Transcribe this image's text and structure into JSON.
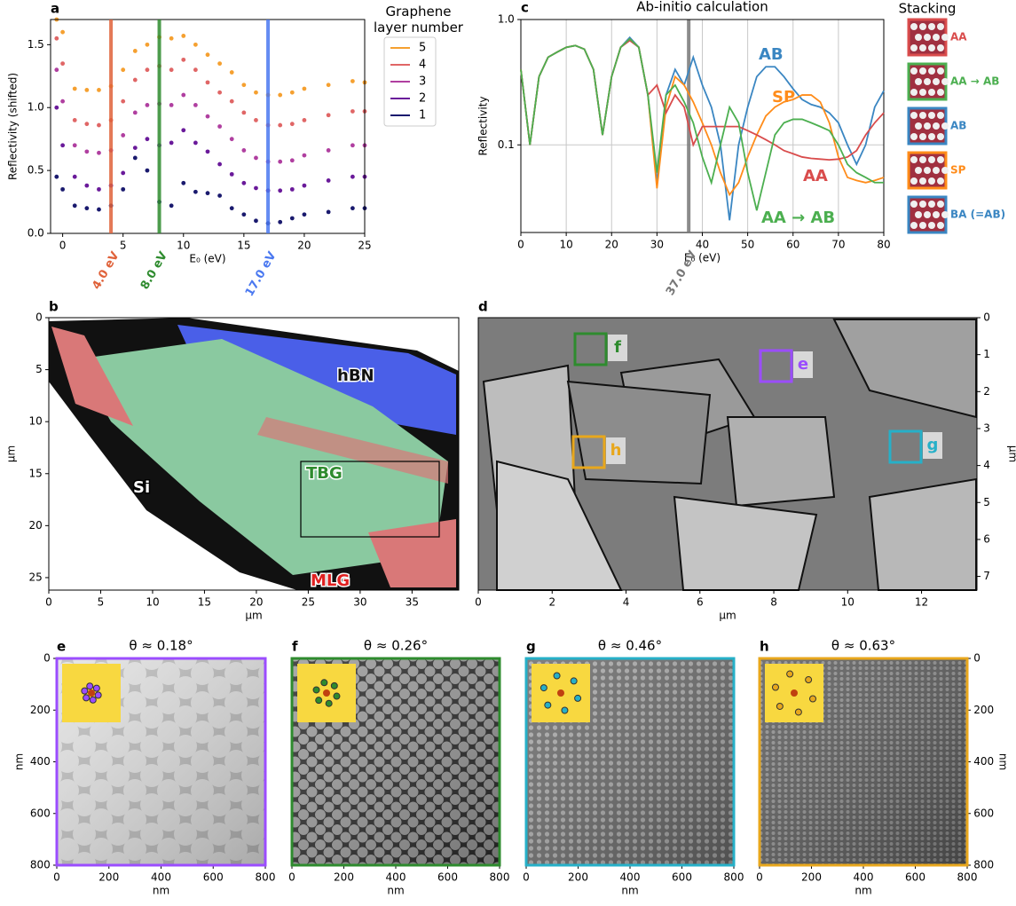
{
  "chart_data": [
    {
      "type": "scatter",
      "label": "a",
      "xlabel": "E₀ (eV)",
      "ylabel": "Reflectivity (shifted)",
      "x": [
        -0.5,
        0,
        1,
        2,
        3,
        4,
        5,
        6,
        7,
        8,
        9,
        10,
        11,
        12,
        13,
        14,
        15,
        16,
        17,
        18,
        19,
        20,
        22,
        24,
        25
      ],
      "series": [
        {
          "name": "5",
          "color": "#f5a030",
          "values": [
            1.7,
            1.6,
            1.15,
            1.14,
            1.14,
            1.17,
            1.3,
            1.45,
            1.5,
            1.56,
            1.55,
            1.57,
            1.5,
            1.42,
            1.35,
            1.28,
            1.18,
            1.12,
            1.1,
            1.1,
            1.12,
            1.15,
            1.18,
            1.21,
            1.2
          ]
        },
        {
          "name": "4",
          "color": "#e06666",
          "values": [
            1.55,
            1.35,
            0.9,
            0.87,
            0.86,
            0.9,
            1.05,
            1.22,
            1.3,
            1.33,
            1.3,
            1.38,
            1.3,
            1.2,
            1.12,
            1.05,
            0.96,
            0.9,
            0.86,
            0.86,
            0.87,
            0.9,
            0.94,
            0.97,
            0.97
          ]
        },
        {
          "name": "3",
          "color": "#b03fa0",
          "values": [
            1.3,
            1.05,
            0.7,
            0.65,
            0.64,
            0.66,
            0.78,
            0.96,
            1.02,
            1.03,
            1.02,
            1.1,
            1.02,
            0.93,
            0.85,
            0.75,
            0.66,
            0.6,
            0.57,
            0.57,
            0.58,
            0.62,
            0.66,
            0.7,
            0.7
          ]
        },
        {
          "name": "2",
          "color": "#6a1a9a",
          "values": [
            1.0,
            0.7,
            0.45,
            0.38,
            0.35,
            0.38,
            0.48,
            0.68,
            0.75,
            0.7,
            0.72,
            0.82,
            0.72,
            0.65,
            0.55,
            0.47,
            0.4,
            0.36,
            0.34,
            0.34,
            0.35,
            0.38,
            0.42,
            0.45,
            0.45
          ]
        },
        {
          "name": "1",
          "color": "#1a1a6e",
          "values": [
            0.45,
            0.35,
            0.22,
            0.2,
            0.19,
            0.22,
            0.35,
            0.6,
            0.5,
            0.25,
            0.22,
            0.4,
            0.33,
            0.32,
            0.3,
            0.2,
            0.15,
            0.1,
            0.08,
            0.09,
            0.12,
            0.15,
            0.17,
            0.2,
            0.2
          ]
        }
      ],
      "legend_title": "Graphene layer number",
      "xlim": [
        -1,
        25
      ],
      "ylim": [
        0,
        1.7
      ],
      "xticks": [
        0,
        5,
        10,
        15,
        20,
        25
      ],
      "yticks": [
        {
          "value": 0,
          "label": "0.0"
        },
        {
          "value": 0.5,
          "label": "0.5"
        },
        {
          "value": 1,
          "label": "1.0"
        },
        {
          "value": 1.5,
          "label": "1.5"
        }
      ],
      "vlines": [
        {
          "x": 4,
          "label": "4.0 eV",
          "color": "#e0623a"
        },
        {
          "x": 8,
          "label": "8.0 eV",
          "color": "#2e8b2e"
        },
        {
          "x": 17,
          "label": "17.0 eV",
          "color": "#4a78f0"
        }
      ]
    },
    {
      "type": "line",
      "label": "c",
      "title": "Ab-initio calculation",
      "xlabel": "E₀ (eV)",
      "ylabel": "Reflectivity",
      "log_y": true,
      "grid": true,
      "x": [
        0,
        2,
        4,
        6,
        8,
        10,
        12,
        14,
        16,
        18,
        20,
        22,
        24,
        26,
        28,
        30,
        32,
        34,
        36,
        38,
        40,
        42,
        44,
        46,
        48,
        50,
        52,
        54,
        56,
        58,
        60,
        62,
        64,
        66,
        68,
        70,
        72,
        74,
        76,
        78,
        80
      ],
      "series": [
        {
          "name": "AB",
          "color": "#3a86c2",
          "values": [
            0.4,
            0.1,
            0.35,
            0.5,
            0.55,
            0.6,
            0.62,
            0.58,
            0.4,
            0.12,
            0.35,
            0.6,
            0.72,
            0.6,
            0.25,
            0.05,
            0.25,
            0.4,
            0.3,
            0.5,
            0.3,
            0.2,
            0.1,
            0.025,
            0.1,
            0.2,
            0.35,
            0.42,
            0.42,
            0.35,
            0.28,
            0.23,
            0.21,
            0.2,
            0.18,
            0.15,
            0.1,
            0.07,
            0.1,
            0.2,
            0.27
          ]
        },
        {
          "name": "SP",
          "color": "#ff8c1a",
          "values": [
            0.4,
            0.1,
            0.35,
            0.5,
            0.55,
            0.6,
            0.62,
            0.58,
            0.4,
            0.12,
            0.35,
            0.6,
            0.7,
            0.6,
            0.25,
            0.045,
            0.2,
            0.35,
            0.3,
            0.22,
            0.15,
            0.1,
            0.06,
            0.04,
            0.05,
            0.08,
            0.12,
            0.17,
            0.2,
            0.22,
            0.23,
            0.25,
            0.25,
            0.22,
            0.15,
            0.08,
            0.055,
            0.052,
            0.05,
            0.052,
            0.055
          ]
        },
        {
          "name": "AA",
          "color": "#d94c4c",
          "values": [
            0.4,
            0.1,
            0.35,
            0.5,
            0.55,
            0.6,
            0.62,
            0.58,
            0.4,
            0.12,
            0.35,
            0.6,
            0.68,
            0.6,
            0.25,
            0.3,
            0.18,
            0.25,
            0.2,
            0.1,
            0.14,
            0.14,
            0.14,
            0.14,
            0.14,
            0.13,
            0.12,
            0.11,
            0.1,
            0.09,
            0.085,
            0.08,
            0.078,
            0.077,
            0.076,
            0.077,
            0.08,
            0.09,
            0.12,
            0.15,
            0.18
          ]
        },
        {
          "name": "AA → AB",
          "color": "#4caf50",
          "values": [
            0.4,
            0.1,
            0.35,
            0.5,
            0.55,
            0.6,
            0.62,
            0.58,
            0.4,
            0.12,
            0.35,
            0.6,
            0.7,
            0.6,
            0.25,
            0.06,
            0.25,
            0.3,
            0.22,
            0.15,
            0.08,
            0.05,
            0.1,
            0.2,
            0.15,
            0.06,
            0.03,
            0.06,
            0.12,
            0.15,
            0.16,
            0.16,
            0.15,
            0.14,
            0.13,
            0.1,
            0.07,
            0.06,
            0.055,
            0.05,
            0.05
          ]
        }
      ],
      "xlim": [
        0,
        80
      ],
      "ylim": [
        0.02,
        1
      ],
      "xticks": [
        0,
        10,
        20,
        30,
        40,
        50,
        60,
        70,
        80
      ],
      "yticks": [
        {
          "value": 0.1,
          "label": "0.1"
        },
        {
          "value": 1,
          "label": "1.0"
        }
      ],
      "vlines": [
        {
          "x": 37,
          "label": "37.0 eV",
          "color": "#777777"
        }
      ],
      "stacking_title": "Stacking",
      "stacking": [
        {
          "label": "AA",
          "color": "#d94c4c"
        },
        {
          "label": "AA → AB",
          "color": "#4caf50"
        },
        {
          "label": "AB",
          "color": "#3a86c2"
        },
        {
          "label": "SP",
          "color": "#ff8c1a"
        },
        {
          "label": "BA (=AB)",
          "color": "#3a86c2"
        }
      ]
    },
    {
      "type": "image",
      "label": "b",
      "xlabel": "μm",
      "ylabel": "μm",
      "xlim": [
        0,
        39.5
      ],
      "ylim": [
        26.2,
        0
      ],
      "xticks": [
        0,
        5,
        10,
        15,
        20,
        25,
        30,
        35
      ],
      "yticks": [
        0,
        5,
        10,
        15,
        20,
        25
      ],
      "annotations": [
        {
          "text": "hBN",
          "color": "#111111"
        },
        {
          "text": "TBG",
          "color": "#2e8b2e"
        },
        {
          "text": "Si",
          "color": "#ffffff"
        },
        {
          "text": "MLG",
          "color": "#e02020"
        }
      ]
    },
    {
      "type": "image",
      "label": "d",
      "xlabel": "μm",
      "ylabel": "μm",
      "xlim": [
        0,
        13.5
      ],
      "ylim": [
        7.37,
        0
      ],
      "xticks": [
        0,
        2,
        4,
        6,
        8,
        10,
        12
      ],
      "yticks": [
        0,
        1,
        2,
        3,
        4,
        5,
        6,
        7
      ],
      "y_side": "right",
      "boxes": [
        {
          "label": "f",
          "color": "#2e8b2e"
        },
        {
          "label": "e",
          "color": "#9b4dff"
        },
        {
          "label": "h",
          "color": "#e8a71c"
        },
        {
          "label": "g",
          "color": "#26b0c8"
        }
      ]
    },
    {
      "type": "image",
      "label": "e",
      "title": "θ ≈ 0.18°",
      "xlabel": "nm",
      "ylabel": "nm",
      "border_color": "#9b4dff",
      "xlim": [
        0,
        800
      ],
      "ylim": [
        800,
        0
      ],
      "xticks": [
        0,
        200,
        400,
        600,
        800
      ],
      "yticks": [
        0,
        200,
        400,
        600,
        800
      ]
    },
    {
      "type": "image",
      "label": "f",
      "title": "θ ≈ 0.26°",
      "xlabel": "nm",
      "border_color": "#2e8b2e",
      "xlim": [
        0,
        800
      ],
      "ylim": [
        800,
        0
      ],
      "xticks": [
        0,
        200,
        400,
        600,
        800
      ]
    },
    {
      "type": "image",
      "label": "g",
      "title": "θ ≈ 0.46°",
      "xlabel": "nm",
      "border_color": "#26b0c8",
      "xlim": [
        0,
        800
      ],
      "ylim": [
        800,
        0
      ],
      "xticks": [
        0,
        200,
        400,
        600,
        800
      ]
    },
    {
      "type": "image",
      "label": "h",
      "title": "θ ≈ 0.63°",
      "xlabel": "nm",
      "ylabel": "nm",
      "border_color": "#e8a71c",
      "xlim": [
        0,
        800
      ],
      "ylim": [
        800,
        0
      ],
      "xticks": [
        0,
        200,
        400,
        600,
        800
      ],
      "yticks": [
        0,
        200,
        400,
        600,
        800
      ],
      "y_side": "right"
    }
  ]
}
